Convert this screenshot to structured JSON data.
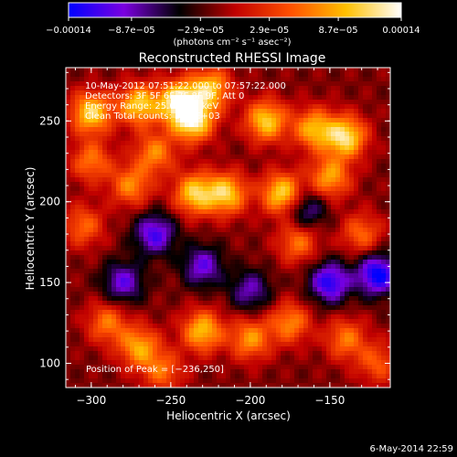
{
  "chart_data": {
    "type": "heatmap",
    "title": "Reconstructed RHESSI Image",
    "xlabel": "Heliocentric X (arcsec)",
    "ylabel": "Heliocentric Y (arcsec)",
    "xlim": [
      -316,
      -112
    ],
    "ylim": [
      85,
      283
    ],
    "x_ticks": [
      -300,
      -250,
      -200,
      -150
    ],
    "x_tick_labels": [
      "−300",
      "−250",
      "−200",
      "−150"
    ],
    "y_ticks": [
      100,
      150,
      200,
      250
    ],
    "y_tick_labels": [
      "100",
      "150",
      "200",
      "250"
    ],
    "colorbar": {
      "range": [
        -0.00014,
        0.00014
      ],
      "ticks": [
        -0.00014,
        -8.7e-05,
        -2.9e-05,
        2.9e-05,
        8.7e-05,
        0.00014
      ],
      "tick_labels": [
        "−0.00014",
        "−8.7e−05",
        "−2.9e−05",
        "2.9e−05",
        "8.7e−05",
        "0.00014"
      ],
      "units": "(photons cm⁻² s⁻¹ asec⁻²)",
      "colors": [
        "#0000ff",
        "#7b00e0",
        "#000000",
        "#c00000",
        "#ff5000",
        "#ffc000",
        "#ffffff"
      ]
    },
    "annotations": [
      "10-May-2012 07:51:22.000 to 07:57:22.000",
      "Detectors: 3F 5F 6F 7F 8F 9F, Att 0",
      "Energy Range: 25.0-50.0 keV",
      "Clean    Total counts: 3.59E+03"
    ],
    "peak": {
      "label": "Position of Peak = [−236,250]",
      "x": -236,
      "y": 250
    },
    "grid": false,
    "legend": "none",
    "features": [
      {
        "x": -300,
        "y": 255,
        "level": 0.9
      },
      {
        "x": -270,
        "y": 260,
        "level": 0.85
      },
      {
        "x": -245,
        "y": 262,
        "level": 1.0
      },
      {
        "x": -236,
        "y": 250,
        "level": 1.0
      },
      {
        "x": -225,
        "y": 270,
        "level": 0.8
      },
      {
        "x": -190,
        "y": 250,
        "level": 0.85
      },
      {
        "x": -160,
        "y": 245,
        "level": 0.75
      },
      {
        "x": -140,
        "y": 240,
        "level": 0.95
      },
      {
        "x": -150,
        "y": 215,
        "level": 0.7
      },
      {
        "x": -180,
        "y": 205,
        "level": 0.9
      },
      {
        "x": -235,
        "y": 205,
        "level": 0.85
      },
      {
        "x": -215,
        "y": 205,
        "level": 0.85
      },
      {
        "x": -275,
        "y": 210,
        "level": 0.6
      },
      {
        "x": -300,
        "y": 225,
        "level": 0.55
      },
      {
        "x": -305,
        "y": 185,
        "level": 0.5
      },
      {
        "x": -260,
        "y": 230,
        "level": 0.6
      },
      {
        "x": -170,
        "y": 175,
        "level": 0.55
      },
      {
        "x": -130,
        "y": 180,
        "level": 0.5
      },
      {
        "x": -290,
        "y": 125,
        "level": 0.55
      },
      {
        "x": -270,
        "y": 110,
        "level": 0.7
      },
      {
        "x": -230,
        "y": 120,
        "level": 0.8
      },
      {
        "x": -200,
        "y": 115,
        "level": 0.65
      },
      {
        "x": -175,
        "y": 125,
        "level": 0.6
      },
      {
        "x": -140,
        "y": 115,
        "level": 0.55
      },
      {
        "x": -120,
        "y": 100,
        "level": 0.45
      },
      {
        "x": -255,
        "y": 95,
        "level": 0.5
      },
      {
        "x": -260,
        "y": 180,
        "level": -0.7
      },
      {
        "x": -230,
        "y": 160,
        "level": -0.6
      },
      {
        "x": -200,
        "y": 145,
        "level": -0.5
      },
      {
        "x": -150,
        "y": 150,
        "level": -0.8
      },
      {
        "x": -120,
        "y": 155,
        "level": -0.9
      },
      {
        "x": -165,
        "y": 195,
        "level": -0.5
      },
      {
        "x": -280,
        "y": 150,
        "level": -0.6
      }
    ]
  },
  "footer": {
    "date": "6-May-2014 22:59"
  }
}
